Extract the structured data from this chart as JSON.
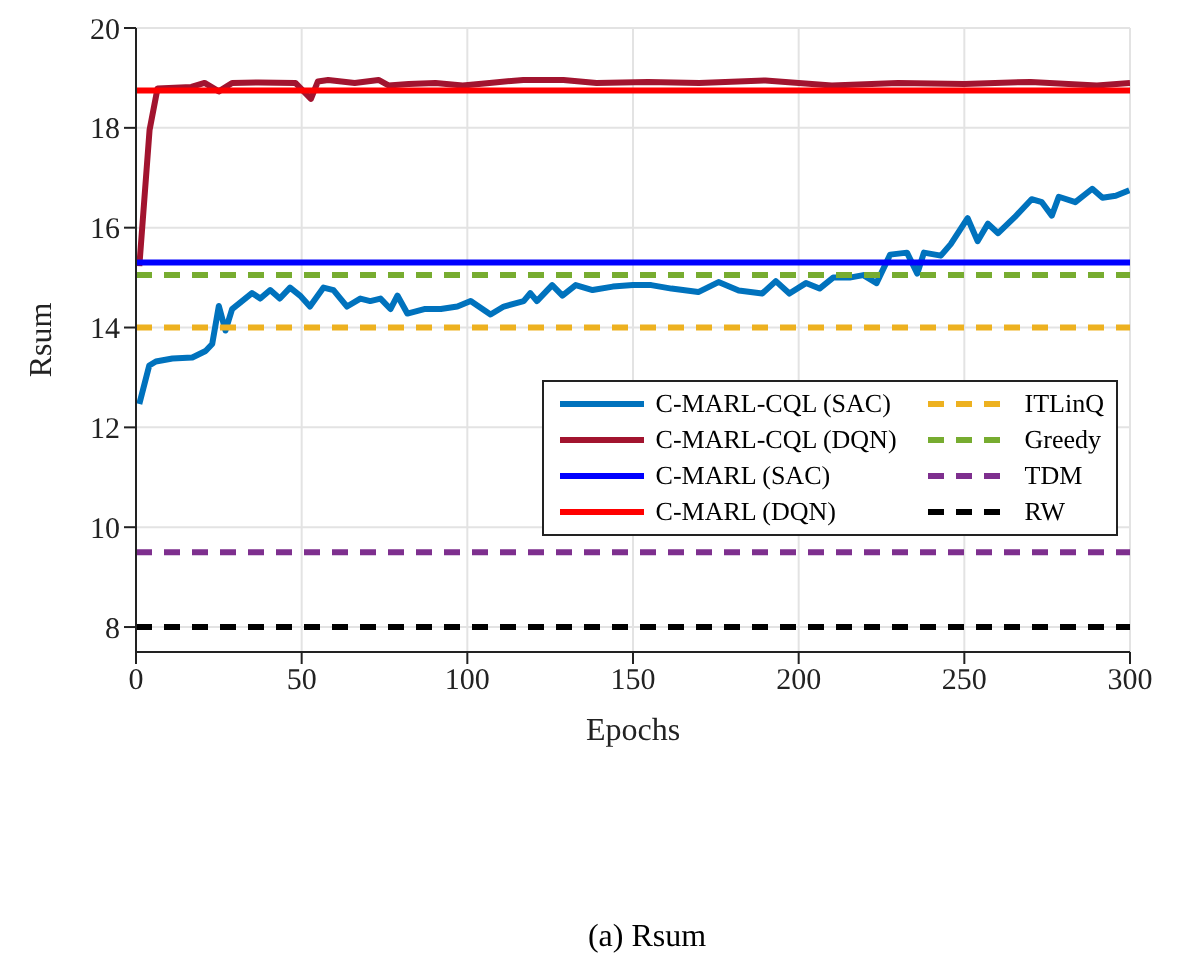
{
  "chart_data": {
    "type": "line",
    "xlabel": "Epochs",
    "ylabel": "Rsum",
    "annotations": [
      "(a) Rsum"
    ],
    "xlim": [
      0,
      300
    ],
    "ylim": [
      7.5,
      20
    ],
    "xticks": [
      0,
      50,
      100,
      150,
      200,
      250,
      300
    ],
    "yticks": [
      8,
      10,
      12,
      14,
      16,
      18,
      20
    ],
    "grid": true,
    "legend": "bottom right",
    "marker": "none",
    "series": [
      {
        "name": "C-MARL-CQL (SAC)",
        "color": "#0072bd",
        "line_style": "solid",
        "x": [
          1,
          4,
          6,
          11,
          17,
          21,
          23,
          25,
          27,
          29,
          35,
          37.5,
          40.5,
          43.4,
          46.5,
          49.5,
          52.5,
          56.6,
          59.6,
          63.7,
          67.7,
          70.7,
          73.8,
          76.8,
          78.9,
          81.9,
          87,
          92,
          97,
          101,
          107,
          111,
          117,
          119,
          121,
          125.6,
          128.7,
          132.7,
          137.8,
          143.9,
          150,
          155.5,
          161.6,
          169.7,
          175.8,
          181.9,
          189,
          193.1,
          197.2,
          202.2,
          206.3,
          210.4,
          215.4,
          219.5,
          223.5,
          227.6,
          232.7,
          235.8,
          237.8,
          242.9,
          245.9,
          251,
          254,
          257.1,
          260.2,
          265.2,
          270.3,
          273.4,
          276.4,
          278.5,
          283.5,
          288.6,
          291.7,
          295.7,
          299.8
        ],
        "values": [
          12.47,
          13.24,
          13.32,
          13.38,
          13.4,
          13.53,
          13.67,
          14.43,
          13.94,
          14.37,
          14.69,
          14.58,
          14.75,
          14.58,
          14.8,
          14.64,
          14.42,
          14.8,
          14.75,
          14.42,
          14.58,
          14.53,
          14.58,
          14.37,
          14.64,
          14.28,
          14.37,
          14.37,
          14.42,
          14.53,
          14.26,
          14.42,
          14.53,
          14.69,
          14.53,
          14.85,
          14.64,
          14.85,
          14.75,
          14.82,
          14.85,
          14.85,
          14.78,
          14.71,
          14.91,
          14.74,
          14.68,
          14.93,
          14.68,
          14.89,
          14.78,
          15.0,
          15.0,
          15.05,
          14.89,
          15.46,
          15.5,
          15.08,
          15.5,
          15.44,
          15.67,
          16.19,
          15.73,
          16.08,
          15.89,
          16.21,
          16.57,
          16.51,
          16.24,
          16.62,
          16.51,
          16.78,
          16.6,
          16.64,
          16.75
        ]
      },
      {
        "name": "C-MARL-CQL (DQN)",
        "color": "#a2142f",
        "line_style": "solid",
        "x": [
          1,
          4.1,
          6.5,
          16.7,
          20.7,
          25,
          29,
          37,
          48.1,
          52.8,
          54.9,
          58,
          66,
          73.2,
          76.2,
          82.3,
          90.4,
          98.6,
          106.7,
          116.9,
          129,
          139,
          154.5,
          170,
          190,
          210,
          230,
          250,
          270,
          290,
          300
        ],
        "values": [
          15.23,
          17.96,
          18.79,
          18.82,
          18.9,
          18.73,
          18.9,
          18.91,
          18.9,
          18.58,
          18.93,
          18.96,
          18.9,
          18.96,
          18.85,
          18.88,
          18.9,
          18.85,
          18.9,
          18.96,
          18.96,
          18.9,
          18.92,
          18.9,
          18.95,
          18.85,
          18.9,
          18.88,
          18.92,
          18.85,
          18.9
        ]
      },
      {
        "name": "C-MARL (SAC)",
        "color": "#0000ff",
        "line_style": "solid",
        "x": [
          0,
          300
        ],
        "values": [
          15.3,
          15.3
        ]
      },
      {
        "name": "C-MARL (DQN)",
        "color": "#ff0000",
        "line_style": "solid",
        "x": [
          0,
          300
        ],
        "values": [
          18.75,
          18.75
        ]
      },
      {
        "name": "ITLinQ",
        "color": "#edb120",
        "line_style": "dashed",
        "x": [
          0,
          300
        ],
        "values": [
          14.0,
          14.0
        ]
      },
      {
        "name": "Greedy",
        "color": "#77ac30",
        "line_style": "dashed",
        "x": [
          0,
          300
        ],
        "values": [
          15.05,
          15.05
        ]
      },
      {
        "name": "TDM",
        "color": "#7e2f8e",
        "line_style": "dashed",
        "x": [
          0,
          300
        ],
        "values": [
          9.5,
          9.5
        ]
      },
      {
        "name": "RW",
        "color": "#000000",
        "line_style": "dashed",
        "x": [
          0,
          300
        ],
        "values": [
          8.0,
          8.0
        ]
      }
    ]
  }
}
